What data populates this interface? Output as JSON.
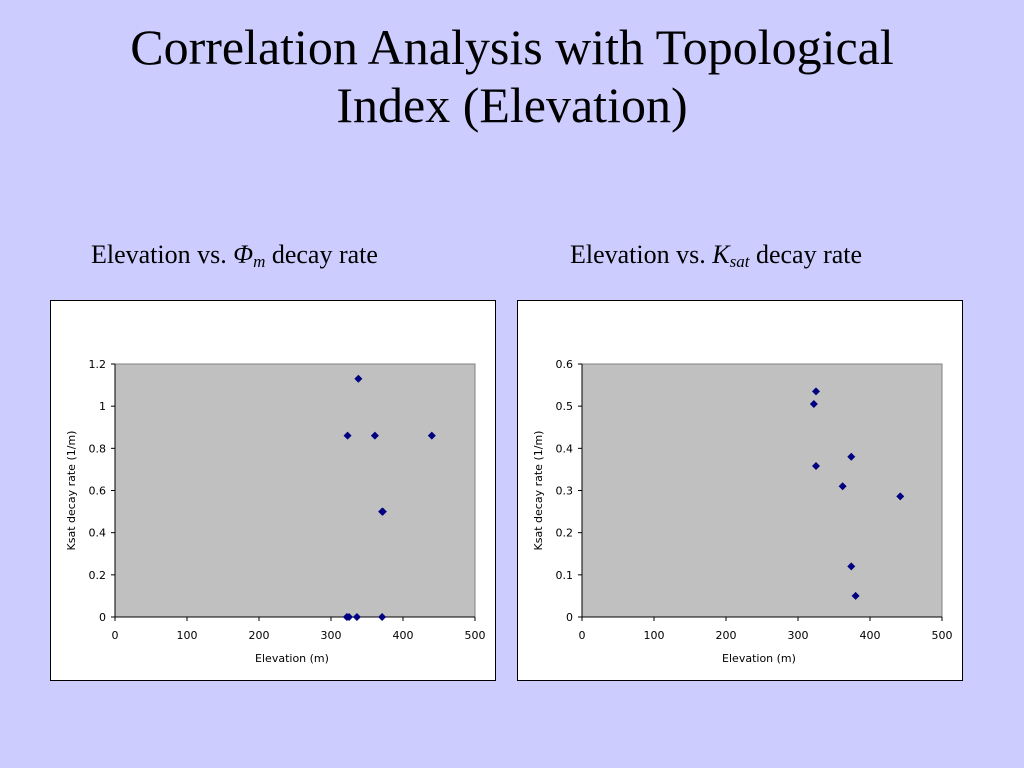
{
  "slide": {
    "title_line1": "Correlation Analysis with Topological",
    "title_line2": "Index (Elevation)"
  },
  "subtitles": {
    "left": {
      "prefix": "Elevation vs. ",
      "symbol": "Φ",
      "subscript": "m",
      "suffix": " decay rate"
    },
    "right": {
      "prefix": "Elevation vs. ",
      "symbol": "K",
      "subscript": "sat",
      "suffix": " decay rate"
    }
  },
  "colors": {
    "background": "#ccccff",
    "plot_area": "#c0c0c0",
    "marker": "#000080"
  },
  "chart_data": [
    {
      "type": "scatter",
      "xlabel": "Elevation (m)",
      "ylabel": "Ksat decay rate (1/m)",
      "xlim": [
        0,
        500
      ],
      "ylim": [
        0,
        1.2
      ],
      "xticks": [
        "0",
        "100",
        "200",
        "300",
        "400",
        "500"
      ],
      "yticks": [
        "0",
        "0.2",
        "0.4",
        "0.6",
        "0.8",
        "1",
        "1.2"
      ],
      "grid": false,
      "marker": "diamond",
      "points": [
        {
          "x": 323,
          "y": 0.86
        },
        {
          "x": 338,
          "y": 1.13
        },
        {
          "x": 361,
          "y": 0.86
        },
        {
          "x": 440,
          "y": 0.86
        },
        {
          "x": 372,
          "y": 0.5
        },
        {
          "x": 371,
          "y": 0.5
        },
        {
          "x": 322,
          "y": 0.0
        },
        {
          "x": 325,
          "y": 0.0
        },
        {
          "x": 336,
          "y": 0.0
        },
        {
          "x": 371,
          "y": 0.0
        }
      ]
    },
    {
      "type": "scatter",
      "xlabel": "Elevation (m)",
      "ylabel": "Ksat decay rate (1/m)",
      "xlim": [
        0,
        500
      ],
      "ylim": [
        0,
        0.6
      ],
      "xticks": [
        "0",
        "100",
        "200",
        "300",
        "400",
        "500"
      ],
      "yticks": [
        "0",
        "0.1",
        "0.2",
        "0.3",
        "0.4",
        "0.5",
        "0.6"
      ],
      "grid": false,
      "marker": "diamond",
      "points": [
        {
          "x": 325,
          "y": 0.535
        },
        {
          "x": 322,
          "y": 0.505
        },
        {
          "x": 325,
          "y": 0.358
        },
        {
          "x": 374,
          "y": 0.38
        },
        {
          "x": 362,
          "y": 0.31
        },
        {
          "x": 442,
          "y": 0.286
        },
        {
          "x": 374,
          "y": 0.12
        },
        {
          "x": 380,
          "y": 0.05
        }
      ]
    }
  ]
}
